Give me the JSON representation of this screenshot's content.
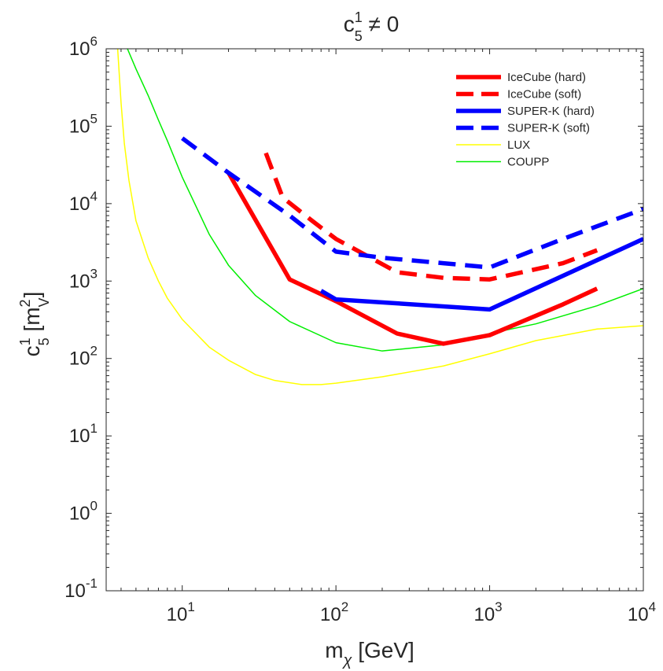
{
  "chart_data": {
    "type": "line",
    "title": {
      "base": "c",
      "sup": "1",
      "sub": "5",
      "tail": " ≠ 0"
    },
    "xlabel": {
      "base": "m",
      "sub": "χ",
      "tail": " [GeV]"
    },
    "ylabel": {
      "base": "c",
      "sup": "1",
      "sub": "5",
      "bracket_open": " [m",
      "unit_sup": "2",
      "unit_sub": "V",
      "bracket_close": "]"
    },
    "x_scale": "log",
    "y_scale": "log",
    "xlim": [
      3.2,
      10000
    ],
    "ylim": [
      0.1,
      1000000
    ],
    "x_ticks": [
      {
        "base": "10",
        "exp": "1",
        "value": 10
      },
      {
        "base": "10",
        "exp": "2",
        "value": 100
      },
      {
        "base": "10",
        "exp": "3",
        "value": 1000
      },
      {
        "base": "10",
        "exp": "4",
        "value": 10000
      }
    ],
    "y_ticks": [
      {
        "base": "10",
        "exp": "-1",
        "value": 0.1
      },
      {
        "base": "10",
        "exp": "0",
        "value": 1
      },
      {
        "base": "10",
        "exp": "1",
        "value": 10
      },
      {
        "base": "10",
        "exp": "2",
        "value": 100
      },
      {
        "base": "10",
        "exp": "3",
        "value": 1000
      },
      {
        "base": "10",
        "exp": "4",
        "value": 10000
      },
      {
        "base": "10",
        "exp": "5",
        "value": 100000
      },
      {
        "base": "10",
        "exp": "6",
        "value": 1000000
      }
    ],
    "grid": false,
    "legend_position": "top-right",
    "series": [
      {
        "name": "IceCube (hard)",
        "color": "#ff0000",
        "style": "solid",
        "weight": "thick",
        "x": [
          20,
          50,
          100,
          250,
          500,
          1000,
          3000,
          5000
        ],
        "y": [
          25000,
          1050,
          550,
          210,
          155,
          200,
          500,
          800
        ]
      },
      {
        "name": "IceCube (soft)",
        "color": "#ff0000",
        "style": "dashed",
        "weight": "thick",
        "x": [
          35,
          45,
          70,
          100,
          250,
          500,
          1000,
          3000,
          5000
        ],
        "y": [
          45000,
          12000,
          6000,
          3500,
          1300,
          1100,
          1050,
          1700,
          2500
        ]
      },
      {
        "name": "SUPER-K (hard)",
        "color": "#0000ff",
        "style": "solid",
        "weight": "thick",
        "x": [
          80,
          100,
          1000,
          10000
        ],
        "y": [
          750,
          580,
          430,
          3500
        ]
      },
      {
        "name": "SUPER-K (soft)",
        "color": "#0000ff",
        "style": "dashed",
        "weight": "thick",
        "x": [
          10,
          20,
          50,
          100,
          200,
          500,
          1000,
          3000,
          10000
        ],
        "y": [
          70000,
          25000,
          7000,
          2400,
          2000,
          1700,
          1500,
          3500,
          8500
        ]
      },
      {
        "name": "LUX",
        "color": "#ffff00",
        "style": "solid",
        "weight": "thin",
        "x": [
          3.8,
          4.0,
          4.2,
          4.5,
          5,
          6,
          7,
          8,
          10,
          15,
          20,
          30,
          40,
          60,
          80,
          100,
          200,
          500,
          1000,
          2000,
          5000,
          10000
        ],
        "y": [
          1000000,
          200000,
          60000,
          20000,
          6000,
          2000,
          1000,
          600,
          320,
          140,
          95,
          62,
          52,
          46,
          46,
          48,
          58,
          80,
          115,
          170,
          240,
          265
        ]
      },
      {
        "name": "COUPP",
        "color": "#00ee00",
        "style": "solid",
        "weight": "thin",
        "x": [
          4.4,
          5,
          6,
          7,
          8,
          10,
          15,
          20,
          30,
          50,
          100,
          200,
          500,
          1000,
          2000,
          5000,
          10000
        ],
        "y": [
          1000000,
          550000,
          250000,
          120000,
          65000,
          22000,
          4000,
          1600,
          650,
          300,
          160,
          125,
          150,
          210,
          280,
          480,
          800
        ]
      }
    ]
  }
}
